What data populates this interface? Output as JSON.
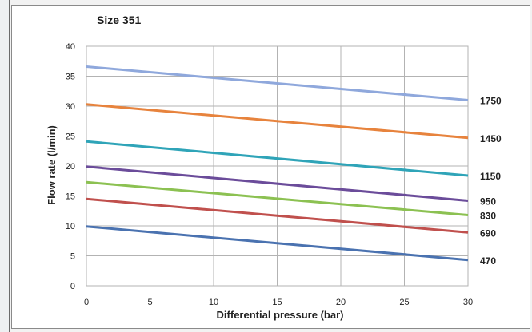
{
  "chart_data": {
    "type": "line",
    "title": "Size 351",
    "xlabel": "Differential pressure (bar)",
    "ylabel": "Flow rate (l/min)",
    "xlim": [
      0,
      30
    ],
    "ylim": [
      0,
      40
    ],
    "x_ticks": [
      "0",
      "5",
      "10",
      "15",
      "20",
      "25",
      "30"
    ],
    "y_ticks": [
      "0",
      "5",
      "10",
      "15",
      "20",
      "25",
      "30",
      "35",
      "40"
    ],
    "grid": true,
    "x": [
      0,
      30
    ],
    "series": [
      {
        "name": "1750",
        "values": [
          36.6,
          31.0
        ],
        "color": "#8fa8dc"
      },
      {
        "name": "1450",
        "values": [
          30.3,
          24.7
        ],
        "color": "#e7833d"
      },
      {
        "name": "1150",
        "values": [
          24.1,
          18.4
        ],
        "color": "#2fa4b8"
      },
      {
        "name": "950",
        "values": [
          19.9,
          14.2
        ],
        "color": "#6b4c9a"
      },
      {
        "name": "830",
        "values": [
          17.3,
          11.8
        ],
        "color": "#8cc152"
      },
      {
        "name": "690",
        "values": [
          14.5,
          8.9
        ],
        "color": "#c0504d"
      },
      {
        "name": "470",
        "values": [
          9.9,
          4.3
        ],
        "color": "#4a72b0"
      }
    ]
  }
}
